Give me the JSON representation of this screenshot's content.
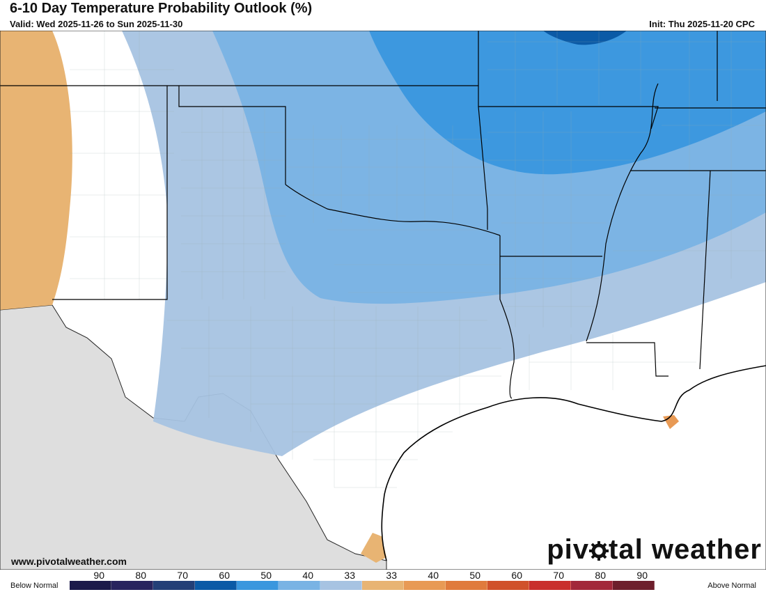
{
  "header": {
    "title": "6-10 Day Temperature Probability Outlook (%)",
    "valid": "Valid: Wed 2025-11-26 to Sun 2025-11-30",
    "init": "Init: Thu 2025-11-20 CPC"
  },
  "footer": {
    "website": "www.pivotalweather.com",
    "brand_left": "piv",
    "brand_right": "tal weather"
  },
  "legend": {
    "below_label": "Below Normal",
    "above_label": "Above Normal",
    "below": [
      {
        "value": "90",
        "color": "#1c1a4a"
      },
      {
        "value": "80",
        "color": "#28245e"
      },
      {
        "value": "70",
        "color": "#233f77"
      },
      {
        "value": "60",
        "color": "#0b5aa6"
      },
      {
        "value": "50",
        "color": "#3a97de"
      },
      {
        "value": "40",
        "color": "#79b3e4"
      },
      {
        "value": "33",
        "color": "#a7c3e2"
      }
    ],
    "above": [
      {
        "value": "33",
        "color": "#e8b473"
      },
      {
        "value": "40",
        "color": "#e89a55"
      },
      {
        "value": "50",
        "color": "#e07b3d"
      },
      {
        "value": "60",
        "color": "#d0522b"
      },
      {
        "value": "70",
        "color": "#c92f2c"
      },
      {
        "value": "80",
        "color": "#a2283a"
      },
      {
        "value": "90",
        "color": "#6e1f2c"
      }
    ]
  }
}
